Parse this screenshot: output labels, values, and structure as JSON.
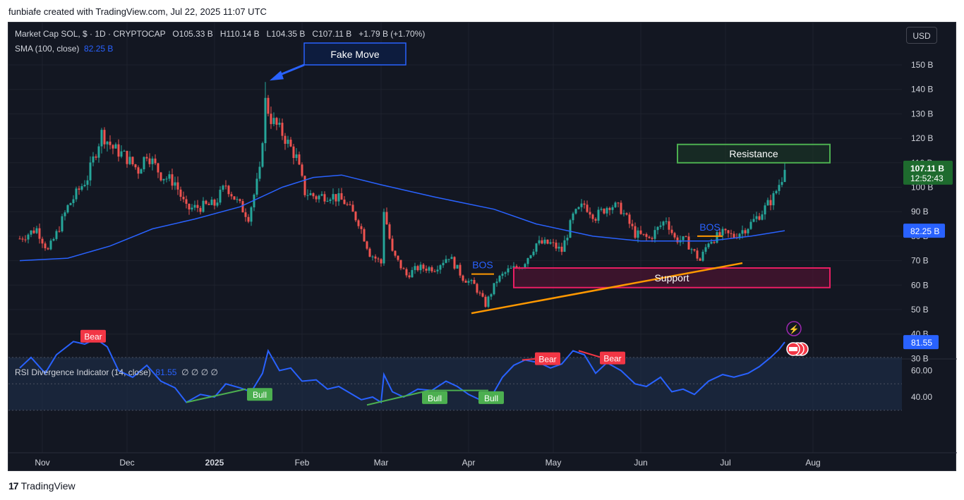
{
  "header": {
    "attribution": "funbiafe created with TradingView.com, Jul 22, 2025 11:07 UTC"
  },
  "legend": {
    "symbol": "Market Cap SOL, $ · 1D · CRYPTOCAP",
    "open_label": "O",
    "open": "105.33 B",
    "high_label": "H",
    "high": "110.14 B",
    "low_label": "L",
    "low": "104.35 B",
    "close_label": "C",
    "close": "107.11 B",
    "change": "+1.79 B (+1.70%)",
    "sma_label": "SMA (100, close)",
    "sma_value": "82.25 B"
  },
  "currency_button": "USD",
  "footer": {
    "brand": "TradingView"
  },
  "colors": {
    "background": "#131722",
    "up": "#26a69a",
    "down": "#ef5350",
    "sma": "#2962ff",
    "rsi": "#2962ff",
    "bear": "#f23645",
    "bull": "#4caf50",
    "trend": "#ff9800",
    "resistance": "#4caf50",
    "support": "#e91e63"
  },
  "chart_data": {
    "type": "candlestick",
    "title": "Market Cap SOL, $ · 1D · CRYPTOCAP",
    "ylim": [
      30,
      155
    ],
    "y_unit": "B",
    "y_ticks": [
      "150 B",
      "140 B",
      "130 B",
      "120 B",
      "110 B",
      "100 B",
      "90 B",
      "80 B",
      "70 B",
      "60 B",
      "50 B",
      "40 B",
      "30 B"
    ],
    "x_ticks": [
      "Nov",
      "Dec",
      "2025",
      "Feb",
      "Mar",
      "Apr",
      "May",
      "Jun",
      "Jul",
      "Aug"
    ],
    "price_path": [
      [
        "2024-10-24",
        79
      ],
      [
        "2024-10-30",
        83
      ],
      [
        "2024-11-03",
        74
      ],
      [
        "2024-11-06",
        81
      ],
      [
        "2024-11-10",
        92
      ],
      [
        "2024-11-14",
        99
      ],
      [
        "2024-11-17",
        104
      ],
      [
        "2024-11-22",
        122
      ],
      [
        "2024-11-26",
        116
      ],
      [
        "2024-11-30",
        113
      ],
      [
        "2024-12-05",
        107
      ],
      [
        "2024-12-08",
        114
      ],
      [
        "2024-12-13",
        105
      ],
      [
        "2024-12-18",
        102
      ],
      [
        "2024-12-22",
        91
      ],
      [
        "2024-12-27",
        92
      ],
      [
        "2025-01-01",
        93
      ],
      [
        "2025-01-05",
        101
      ],
      [
        "2025-01-09",
        94
      ],
      [
        "2025-01-13",
        88
      ],
      [
        "2025-01-17",
        106
      ],
      [
        "2025-01-19",
        135
      ],
      [
        "2025-01-21",
        128
      ],
      [
        "2025-01-25",
        122
      ],
      [
        "2025-01-30",
        112
      ],
      [
        "2025-02-02",
        98
      ],
      [
        "2025-02-06",
        96
      ],
      [
        "2025-02-11",
        97
      ],
      [
        "2025-02-16",
        94
      ],
      [
        "2025-02-21",
        86
      ],
      [
        "2025-02-25",
        73
      ],
      [
        "2025-03-01",
        69
      ],
      [
        "2025-03-02",
        91
      ],
      [
        "2025-03-05",
        73
      ],
      [
        "2025-03-10",
        64
      ],
      [
        "2025-03-14",
        67
      ],
      [
        "2025-03-20",
        67
      ],
      [
        "2025-03-25",
        72
      ],
      [
        "2025-03-30",
        63
      ],
      [
        "2025-04-03",
        60
      ],
      [
        "2025-04-07",
        52
      ],
      [
        "2025-04-11",
        62
      ],
      [
        "2025-04-15",
        66
      ],
      [
        "2025-04-20",
        68
      ],
      [
        "2025-04-25",
        77
      ],
      [
        "2025-04-30",
        77
      ],
      [
        "2025-05-04",
        74
      ],
      [
        "2025-05-08",
        88
      ],
      [
        "2025-05-12",
        93
      ],
      [
        "2025-05-16",
        88
      ],
      [
        "2025-05-21",
        93
      ],
      [
        "2025-05-25",
        91
      ],
      [
        "2025-05-30",
        81
      ],
      [
        "2025-06-04",
        79
      ],
      [
        "2025-06-10",
        87
      ],
      [
        "2025-06-13",
        79
      ],
      [
        "2025-06-17",
        78
      ],
      [
        "2025-06-22",
        70
      ],
      [
        "2025-06-25",
        78
      ],
      [
        "2025-06-30",
        81
      ],
      [
        "2025-07-04",
        80
      ],
      [
        "2025-07-09",
        84
      ],
      [
        "2025-07-14",
        90
      ],
      [
        "2025-07-18",
        96
      ],
      [
        "2025-07-21",
        104
      ],
      [
        "2025-07-22",
        107.11
      ]
    ],
    "sma_series": {
      "name": "SMA (100, close)",
      "last": 82.25,
      "points": [
        [
          "2024-10-24",
          70
        ],
        [
          "2024-11-10",
          71
        ],
        [
          "2024-11-25",
          76
        ],
        [
          "2024-12-10",
          83
        ],
        [
          "2024-12-25",
          87
        ],
        [
          "2025-01-10",
          92
        ],
        [
          "2025-01-25",
          100
        ],
        [
          "2025-02-05",
          104
        ],
        [
          "2025-02-15",
          105
        ],
        [
          "2025-03-01",
          101
        ],
        [
          "2025-03-20",
          96
        ],
        [
          "2025-04-10",
          91
        ],
        [
          "2025-04-25",
          85
        ],
        [
          "2025-05-15",
          80
        ],
        [
          "2025-06-01",
          78
        ],
        [
          "2025-06-25",
          78
        ],
        [
          "2025-07-10",
          80
        ],
        [
          "2025-07-22",
          82.25
        ]
      ]
    },
    "current_price": {
      "value": "107.11 B",
      "countdown": "12:52:43"
    },
    "sma_badge": "82.25 B",
    "annotations": {
      "fake_move": {
        "label": "Fake Move",
        "date": "2025-01-19",
        "price": 143
      },
      "resistance": {
        "label": "Resistance",
        "from": "2025-06-14",
        "to": "2025-08-07",
        "top": 117.5,
        "bottom": 110
      },
      "support": {
        "label": "Support",
        "from": "2025-04-17",
        "to": "2025-08-07",
        "top": 67,
        "bottom": 59
      },
      "trendline": {
        "from": [
          "2025-04-02",
          48.5
        ],
        "to": [
          "2025-07-07",
          69
        ]
      },
      "bos": [
        {
          "label": "BOS",
          "from": "2025-04-02",
          "to": "2025-04-10",
          "price": 64.5
        },
        {
          "label": "BOS",
          "from": "2025-06-21",
          "to": "2025-06-30",
          "price": 80
        }
      ]
    },
    "rsi": {
      "title": "RSI Divergence Indicator (14, close)",
      "value": "81.55",
      "extra": "∅ ∅ ∅ ∅",
      "ylim": [
        32,
        88
      ],
      "y_ticks": [
        "60.00",
        "40.00"
      ],
      "band": [
        30,
        70
      ],
      "midline": 50,
      "points": [
        [
          "2024-10-24",
          62
        ],
        [
          "2024-10-28",
          70
        ],
        [
          "2024-11-02",
          58
        ],
        [
          "2024-11-06",
          72
        ],
        [
          "2024-11-12",
          82
        ],
        [
          "2024-11-16",
          80
        ],
        [
          "2024-11-20",
          84
        ],
        [
          "2024-11-24",
          78
        ],
        [
          "2024-11-28",
          60
        ],
        [
          "2024-12-03",
          55
        ],
        [
          "2024-12-08",
          64
        ],
        [
          "2024-12-13",
          52
        ],
        [
          "2024-12-18",
          47
        ],
        [
          "2024-12-22",
          36
        ],
        [
          "2024-12-27",
          42
        ],
        [
          "2025-01-01",
          40
        ],
        [
          "2025-01-05",
          50
        ],
        [
          "2025-01-10",
          47
        ],
        [
          "2025-01-14",
          44
        ],
        [
          "2025-01-18",
          58
        ],
        [
          "2025-01-20",
          75
        ],
        [
          "2025-01-24",
          60
        ],
        [
          "2025-01-28",
          62
        ],
        [
          "2025-02-01",
          52
        ],
        [
          "2025-02-06",
          53
        ],
        [
          "2025-02-10",
          46
        ],
        [
          "2025-02-14",
          48
        ],
        [
          "2025-02-18",
          43
        ],
        [
          "2025-02-22",
          38
        ],
        [
          "2025-02-26",
          40
        ],
        [
          "2025-03-01",
          36
        ],
        [
          "2025-03-02",
          57
        ],
        [
          "2025-03-05",
          44
        ],
        [
          "2025-03-09",
          40
        ],
        [
          "2025-03-14",
          46
        ],
        [
          "2025-03-19",
          45
        ],
        [
          "2025-03-24",
          52
        ],
        [
          "2025-03-28",
          48
        ],
        [
          "2025-04-01",
          42
        ],
        [
          "2025-04-06",
          37
        ],
        [
          "2025-04-09",
          40
        ],
        [
          "2025-04-13",
          55
        ],
        [
          "2025-04-17",
          64
        ],
        [
          "2025-04-21",
          68
        ],
        [
          "2025-04-26",
          66
        ],
        [
          "2025-04-30",
          62
        ],
        [
          "2025-05-04",
          65
        ],
        [
          "2025-05-08",
          75
        ],
        [
          "2025-05-12",
          72
        ],
        [
          "2025-05-16",
          58
        ],
        [
          "2025-05-20",
          66
        ],
        [
          "2025-05-25",
          60
        ],
        [
          "2025-05-30",
          50
        ],
        [
          "2025-06-03",
          48
        ],
        [
          "2025-06-08",
          55
        ],
        [
          "2025-06-12",
          44
        ],
        [
          "2025-06-16",
          46
        ],
        [
          "2025-06-20",
          42
        ],
        [
          "2025-06-25",
          52
        ],
        [
          "2025-06-30",
          57
        ],
        [
          "2025-07-04",
          55
        ],
        [
          "2025-07-09",
          58
        ],
        [
          "2025-07-13",
          63
        ],
        [
          "2025-07-17",
          70
        ],
        [
          "2025-07-20",
          76
        ],
        [
          "2025-07-22",
          81.55
        ]
      ],
      "divergences": [
        {
          "type": "Bear",
          "from": [
            "2024-11-15",
            83
          ],
          "to": [
            "2024-11-21",
            84
          ]
        },
        {
          "type": "Bull",
          "from": [
            "2024-12-22",
            36
          ],
          "to": [
            "2025-01-12",
            46
          ]
        },
        {
          "type": "Bull",
          "from": [
            "2025-02-24",
            34
          ],
          "to": [
            "2025-03-18",
            45
          ]
        },
        {
          "type": "Bull",
          "from": [
            "2025-03-18",
            45
          ],
          "to": [
            "2025-04-08",
            45
          ]
        },
        {
          "type": "Bear",
          "from": [
            "2025-04-20",
            68
          ],
          "to": [
            "2025-04-30",
            70
          ]
        },
        {
          "type": "Bear",
          "from": [
            "2025-05-10",
            75
          ],
          "to": [
            "2025-05-21",
            68
          ]
        }
      ],
      "labels": [
        {
          "text": "Bear",
          "type": "bear",
          "date": "2024-11-19",
          "value": 85.5
        },
        {
          "text": "Bull",
          "type": "bull",
          "date": "2025-01-17",
          "value": 41.5
        },
        {
          "text": "Bull",
          "type": "bull",
          "date": "2025-03-20",
          "value": 39
        },
        {
          "text": "Bull",
          "type": "bull",
          "date": "2025-04-09",
          "value": 39
        },
        {
          "text": "Bear",
          "type": "bear",
          "date": "2025-04-29",
          "value": 68.5
        },
        {
          "text": "Bear",
          "type": "bear",
          "date": "2025-05-22",
          "value": 69
        }
      ]
    }
  }
}
